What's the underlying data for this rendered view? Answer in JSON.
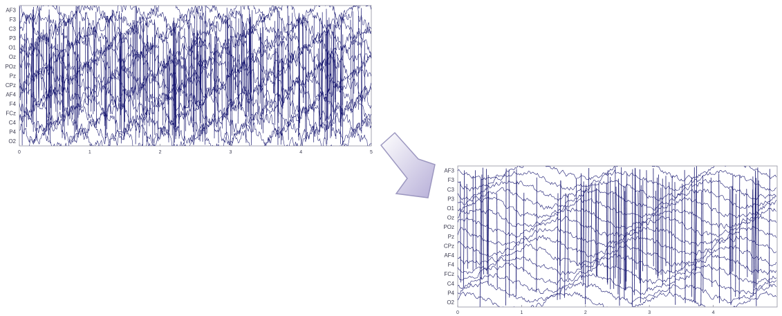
{
  "diagram": {
    "colors": {
      "trace": "#14146e",
      "axis": "#8e8e9e",
      "label": "#3b3b4f",
      "background": "#ffffff",
      "arrow_fill_light": "#ffffff",
      "arrow_fill_dark": "#b7afd8",
      "arrow_stroke": "#9c97c0"
    },
    "arrow_icon": "chevron-down-right-arrow-icon",
    "panels": [
      {
        "id": "top",
        "channels": [
          "AF3",
          "F3",
          "C3",
          "P3",
          "O1",
          "Oz",
          "POz",
          "Pz",
          "CPz",
          "AF4",
          "F4",
          "FCz",
          "C4",
          "P4",
          "O2"
        ],
        "x_ticks": [
          "0",
          "1",
          "2",
          "3",
          "4",
          "5"
        ],
        "x_range": [
          0,
          5
        ]
      },
      {
        "id": "bottom",
        "channels": [
          "AF3",
          "F3",
          "C3",
          "P3",
          "O1",
          "Oz",
          "POz",
          "Pz",
          "CPz",
          "AF4",
          "F4",
          "FCz",
          "C4",
          "P4",
          "O2"
        ],
        "x_ticks": [
          "0",
          "1",
          "2",
          "3",
          "4"
        ],
        "x_range": [
          0,
          5
        ]
      }
    ]
  }
}
